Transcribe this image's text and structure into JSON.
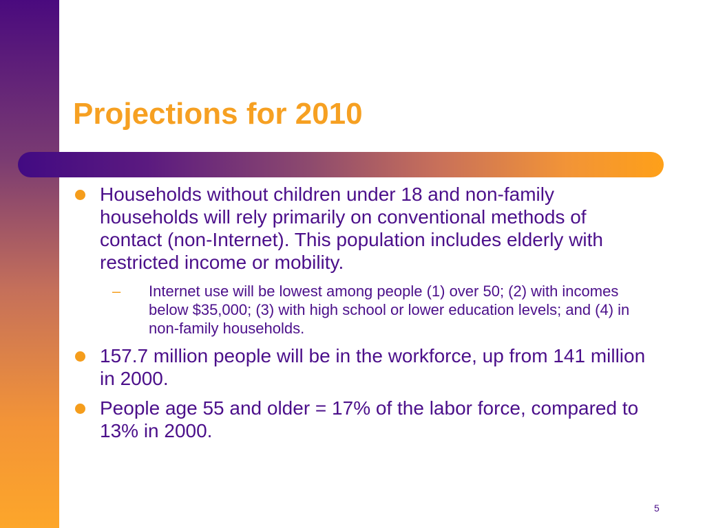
{
  "slide": {
    "title": "Projections for 2010",
    "bullets": [
      {
        "text": "Households without children under 18 and non-family households will rely primarily on conventional methods of contact (non-Internet). This population includes elderly with restricted income or mobility.",
        "sub": [
          {
            "text": "Internet use will be lowest among people (1) over 50; (2) with incomes below $35,000; (3) with high school or lower education levels; and (4) in non-family households."
          }
        ]
      },
      {
        "text": "157.7 million people will be in the workforce, up from 141 million in 2000."
      },
      {
        "text": "People age 55 and older = 17% of the labor force, compared to 13% in 2000."
      }
    ],
    "page_number": "5"
  },
  "colors": {
    "title": "#f6a022",
    "body_text": "#4b0f8a",
    "bullet_marker": "#f59d1c"
  }
}
